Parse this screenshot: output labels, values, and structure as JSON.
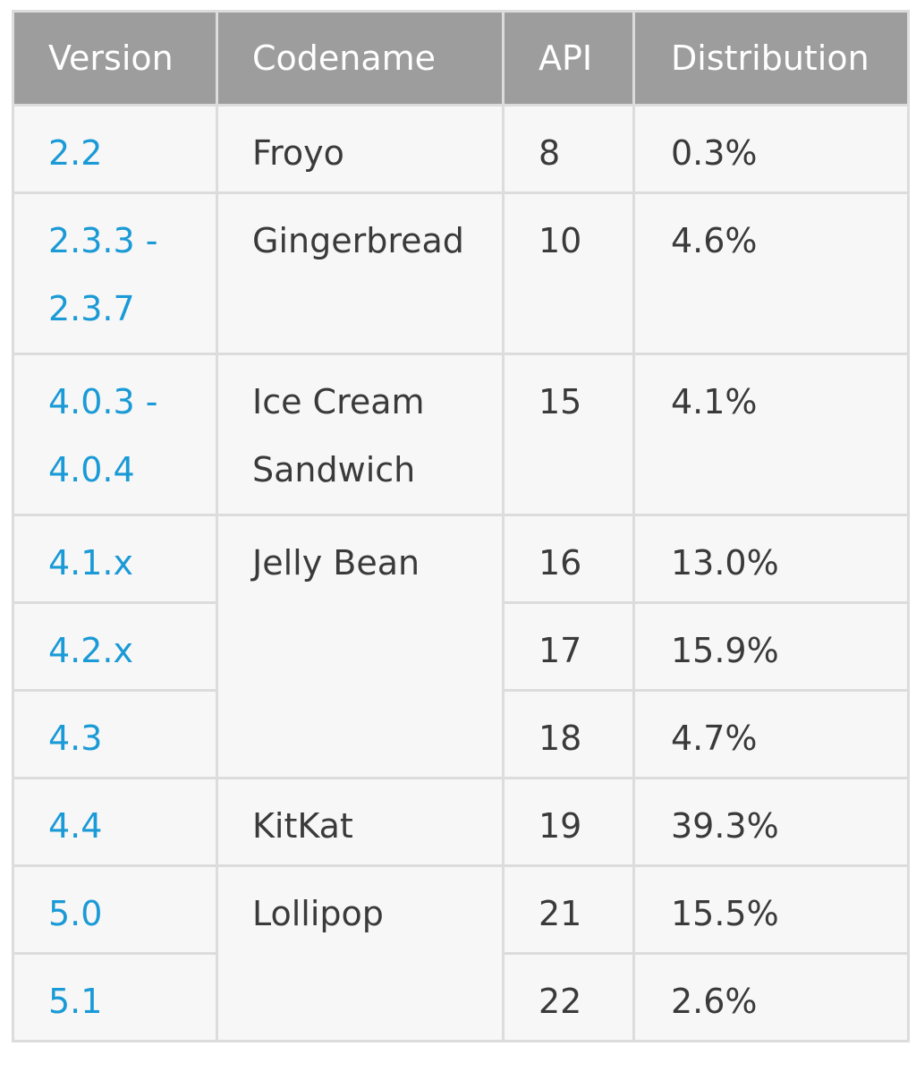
{
  "headers": [
    "Version",
    "Codename",
    "API",
    "Distribution"
  ],
  "rows": [
    {
      "version": "2.2",
      "codename": "Froyo",
      "api": "8",
      "distribution": "0.3%"
    },
    {
      "version": "2.3.3 - 2.3.7",
      "codename": "Gingerbread",
      "api": "10",
      "distribution": "4.6%"
    },
    {
      "version": "4.0.3 - 4.0.4",
      "codename": "Ice Cream Sandwich",
      "api": "15",
      "distribution": "4.1%"
    },
    {
      "version": "4.1.x",
      "codename": "Jelly Bean",
      "api": "16",
      "distribution": "13.0%"
    },
    {
      "version": "4.2.x",
      "codename": "",
      "api": "17",
      "distribution": "15.9%"
    },
    {
      "version": "4.3",
      "codename": "",
      "api": "18",
      "distribution": "4.7%"
    },
    {
      "version": "4.4",
      "codename": "KitKat",
      "api": "19",
      "distribution": "39.3%"
    },
    {
      "version": "5.0",
      "codename": "Lollipop",
      "api": "21",
      "distribution": "15.5%"
    },
    {
      "version": "5.1",
      "codename": "",
      "api": "22",
      "distribution": "2.6%"
    }
  ],
  "colors": {
    "header_bg": "#9d9d9d",
    "header_text": "#ffffff",
    "version_link": "#1a9ad6",
    "body_text": "#3a3a3a",
    "cell_bg": "#f7f7f7",
    "border": "#dcdcdc"
  }
}
